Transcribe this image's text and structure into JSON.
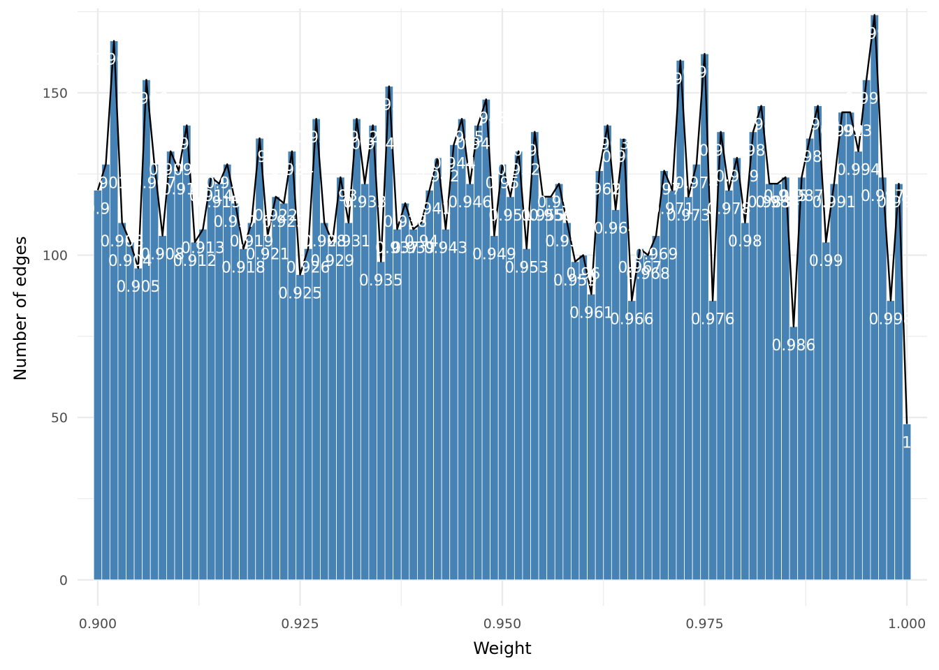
{
  "chart_data": {
    "type": "bar",
    "title": "",
    "xlabel": "Weight",
    "ylabel": "Number of edges",
    "xlim": [
      0.8975,
      1.0025
    ],
    "ylim": [
      -8,
      176
    ],
    "x_ticks": [
      "0.900",
      "0.925",
      "0.950",
      "0.975",
      "1.000"
    ],
    "x_tick_values": [
      0.9,
      0.925,
      0.95,
      0.975,
      1.0
    ],
    "y_ticks": [
      "0",
      "50",
      "100",
      "150"
    ],
    "y_tick_values": [
      0,
      50,
      100,
      150
    ],
    "bin_width": 0.001,
    "grid": true,
    "bar_color": "#4682b4",
    "line_color": "#000000",
    "x": [
      0.9,
      0.901,
      0.902,
      0.903,
      0.904,
      0.905,
      0.906,
      0.907,
      0.908,
      0.909,
      0.91,
      0.911,
      0.912,
      0.913,
      0.914,
      0.915,
      0.916,
      0.917,
      0.918,
      0.919,
      0.92,
      0.921,
      0.922,
      0.923,
      0.924,
      0.925,
      0.926,
      0.927,
      0.928,
      0.929,
      0.93,
      0.931,
      0.932,
      0.933,
      0.934,
      0.935,
      0.936,
      0.937,
      0.938,
      0.939,
      0.94,
      0.941,
      0.942,
      0.943,
      0.944,
      0.945,
      0.946,
      0.947,
      0.948,
      0.949,
      0.95,
      0.951,
      0.952,
      0.953,
      0.954,
      0.955,
      0.956,
      0.957,
      0.958,
      0.959,
      0.96,
      0.961,
      0.962,
      0.963,
      0.964,
      0.965,
      0.966,
      0.967,
      0.968,
      0.969,
      0.97,
      0.971,
      0.972,
      0.973,
      0.974,
      0.975,
      0.976,
      0.977,
      0.978,
      0.979,
      0.98,
      0.981,
      0.982,
      0.983,
      0.984,
      0.985,
      0.986,
      0.987,
      0.988,
      0.989,
      0.99,
      0.991,
      0.992,
      0.993,
      0.994,
      0.995,
      0.996,
      0.997,
      0.998,
      0.999,
      1.0
    ],
    "values": [
      120,
      128,
      166,
      110,
      104,
      96,
      154,
      128,
      106,
      132,
      126,
      140,
      104,
      108,
      124,
      122,
      128,
      116,
      102,
      110,
      136,
      106,
      118,
      116,
      132,
      94,
      102,
      142,
      110,
      104,
      124,
      110,
      142,
      122,
      140,
      98,
      152,
      108,
      116,
      108,
      110,
      120,
      130,
      108,
      134,
      142,
      122,
      140,
      148,
      106,
      128,
      118,
      132,
      102,
      138,
      118,
      118,
      122,
      110,
      98,
      100,
      88,
      126,
      140,
      114,
      136,
      86,
      102,
      100,
      106,
      126,
      120,
      160,
      118,
      128,
      162,
      86,
      138,
      120,
      130,
      110,
      138,
      146,
      122,
      122,
      124,
      78,
      124,
      136,
      146,
      104,
      122,
      144,
      144,
      132,
      154,
      174,
      124,
      86,
      122,
      48
    ],
    "labels": [
      "0.9",
      "0.901",
      "0.902",
      "0.903",
      "0.904",
      "0.905",
      "0.906",
      "0.907",
      "0.908",
      "0.909",
      "0.91",
      "0.911",
      "0.912",
      "0.913",
      "0.914",
      "0.915",
      "0.916",
      "0.917",
      "0.918",
      "0.919",
      "0.92",
      "0.921",
      "0.922",
      "0.923",
      "0.924",
      "0.925",
      "0.926",
      "0.927",
      "0.928",
      "0.929",
      "0.93",
      "0.931",
      "0.932",
      "0.933",
      "0.934",
      "0.935",
      "0.936",
      "0.937",
      "0.938",
      "0.939",
      "0.94",
      "0.941",
      "0.942",
      "0.943",
      "0.944",
      "0.945",
      "0.946",
      "0.947",
      "0.948",
      "0.949",
      "0.95",
      "0.951",
      "0.952",
      "0.953",
      "0.954",
      "0.955",
      "0.956",
      "0.957",
      "0.958",
      "0.959",
      "0.96",
      "0.961",
      "0.962",
      "0.963",
      "0.964",
      "0.965",
      "0.966",
      "0.967",
      "0.968",
      "0.969",
      "0.97",
      "0.971",
      "0.972",
      "0.973",
      "0.974",
      "0.975",
      "0.976",
      "0.977",
      "0.978",
      "0.979",
      "0.98",
      "0.981",
      "0.982",
      "0.983",
      "0.984",
      "0.985",
      "0.986",
      "0.987",
      "0.988",
      "0.989",
      "0.99",
      "0.991",
      "0.992",
      "0.993",
      "0.994",
      "0.995",
      "0.996",
      "0.997",
      "0.998",
      "0.999",
      "1"
    ]
  }
}
